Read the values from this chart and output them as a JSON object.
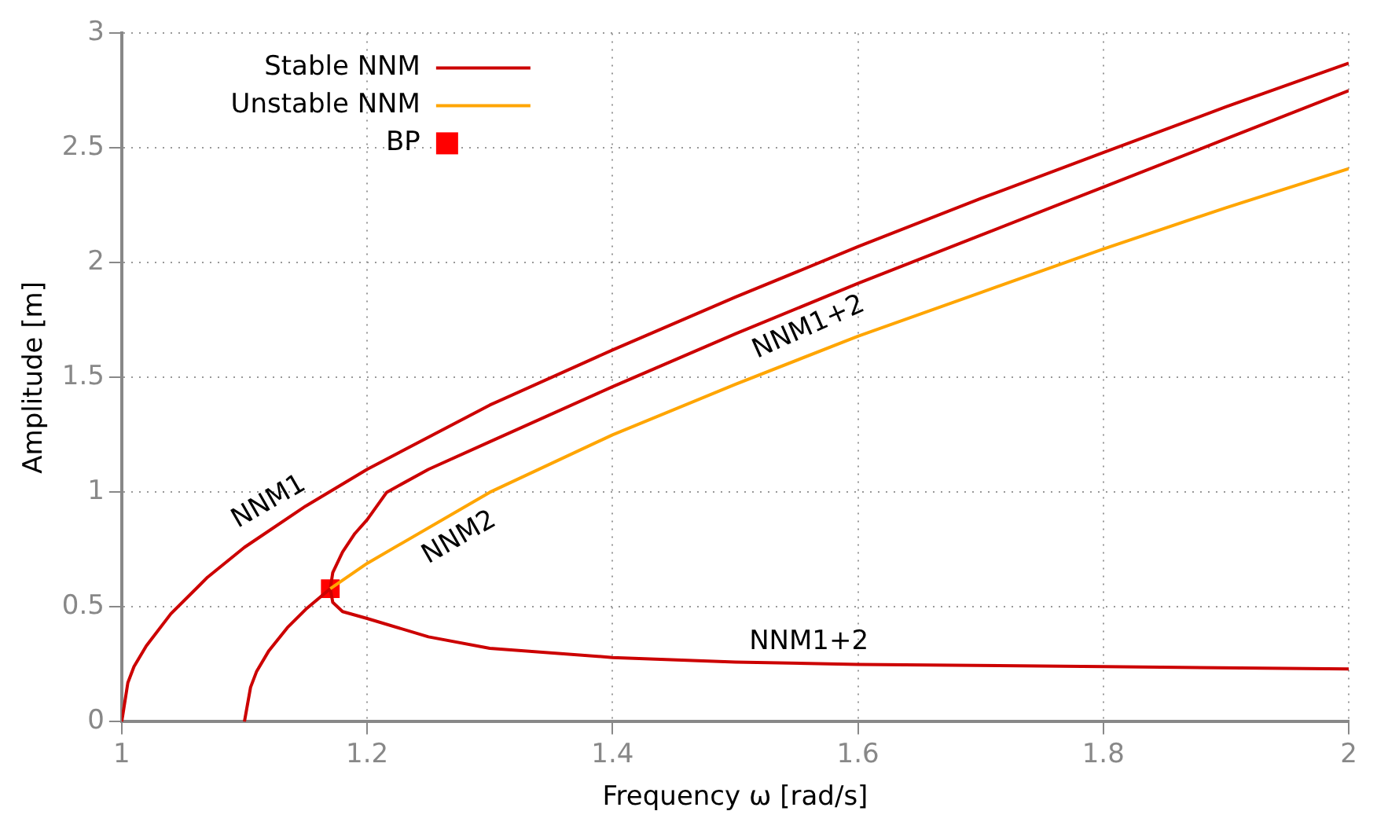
{
  "chart_data": {
    "type": "line",
    "xlabel": "Frequency ω [rad/s]",
    "ylabel": "Amplitude [m]",
    "xlim": [
      1,
      2
    ],
    "xticks": [
      1,
      1.2,
      1.4,
      1.6,
      1.8,
      2
    ],
    "ylim": [
      0,
      3
    ],
    "yticks": [
      0,
      0.5,
      1,
      1.5,
      2,
      2.5,
      3
    ],
    "grid": true,
    "legend": "top left",
    "line_style": "solid",
    "series": [
      {
        "name": "Stable NNM",
        "color": "#cc0000",
        "marker": "none",
        "x": [
          1,
          1.005,
          1.01,
          1.02,
          1.04,
          1.07,
          1.1,
          1.15,
          1.2,
          1.3,
          1.4,
          1.5,
          1.6,
          1.7,
          1.8,
          1.9,
          2
        ],
        "values": [
          0,
          0.17,
          0.24,
          0.33,
          0.47,
          0.63,
          0.76,
          0.94,
          1.1,
          1.38,
          1.62,
          1.85,
          2.07,
          2.28,
          2.48,
          2.68,
          2.87
        ]
      },
      {
        "name": "Unstable NNM",
        "color": "#ffa500",
        "marker": "none",
        "x": [
          1.17,
          1.2,
          1.3,
          1.4,
          1.5,
          1.6,
          1.7,
          1.8,
          1.9,
          2
        ],
        "values": [
          0.58,
          0.69,
          1.0,
          1.25,
          1.47,
          1.68,
          1.87,
          2.06,
          2.24,
          2.41
        ]
      },
      {
        "color": "#cc0000",
        "marker": "none",
        "x": [
          1.1,
          1.105,
          1.11,
          1.12,
          1.135,
          1.15,
          1.17
        ],
        "values": [
          0,
          0.15,
          0.22,
          0.31,
          0.41,
          0.49,
          0.58
        ]
      },
      {
        "color": "#cc0000",
        "marker": "none",
        "x": [
          1.17,
          1.172,
          1.18,
          1.19,
          1.2,
          1.216,
          1.25,
          1.3,
          1.4,
          1.5,
          1.6,
          1.7,
          1.8,
          1.9,
          2
        ],
        "values": [
          0.58,
          0.65,
          0.74,
          0.82,
          0.88,
          1.0,
          1.1,
          1.22,
          1.46,
          1.69,
          1.91,
          2.12,
          2.33,
          2.54,
          2.75
        ]
      },
      {
        "color": "#cc0000",
        "marker": "none",
        "x": [
          1.17,
          1.172,
          1.18,
          1.2,
          1.25,
          1.3,
          1.4,
          1.5,
          1.6,
          1.8,
          2
        ],
        "values": [
          0.58,
          0.52,
          0.48,
          0.45,
          0.37,
          0.32,
          0.28,
          0.26,
          0.25,
          0.24,
          0.23
        ]
      },
      {
        "name": "BP",
        "type": "scatter",
        "color": "#ff0000",
        "marker": "square",
        "x": [
          1.17
        ],
        "values": [
          0.58
        ]
      }
    ],
    "annotations": [
      {
        "text": "NNM1",
        "x": 1.12,
        "y": 0.84
      },
      {
        "text": "NNM1+2",
        "x": 1.56,
        "y": 1.82
      },
      {
        "text": "NNM2",
        "x": 1.27,
        "y": 0.91
      },
      {
        "text": "NNM1+2",
        "x": 1.56,
        "y": 0.25
      }
    ]
  }
}
